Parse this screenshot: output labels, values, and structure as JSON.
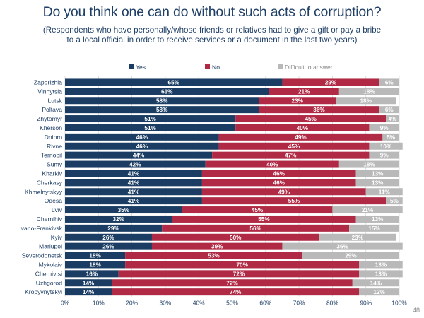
{
  "title": "Do you think one can do without such acts of corruption?",
  "subtitle_line1": "(Respondents who have personally/whose friends or relatives had to give a gift or pay a bribe",
  "subtitle_line2": "to a local official in order to receive services or a document in the last two years)",
  "page_number": "48",
  "colors": {
    "yes": "#1b3d63",
    "no": "#b02a45",
    "difficult": "#b9b9b9"
  },
  "chart_data": {
    "type": "bar",
    "orientation": "horizontal",
    "stacked": true,
    "xlim": [
      0,
      100
    ],
    "xticks": [
      "0%",
      "10%",
      "20%",
      "30%",
      "40%",
      "50%",
      "60%",
      "70%",
      "80%",
      "90%",
      "100%"
    ],
    "legend_position": "top",
    "categories": [
      "Zaporizhia",
      "Vinnytsia",
      "Lutsk",
      "Poltava",
      "Zhytomyr",
      "Kherson",
      "Dnipro",
      "Rivne",
      "Ternopil",
      "Sumy",
      "Kharkiv",
      "Cherkasy",
      "Khmelnytskyy",
      "Odesa",
      "Lviv",
      "Chernihiv",
      "Ivano-Frankivsk",
      "Kyiv",
      "Mariupol",
      "Severodonetsk",
      "Mykolaiv",
      "Chernivtsi",
      "Uzhgorod",
      "Kropyvnytskyi"
    ],
    "series": [
      {
        "name": "Yes",
        "values": [
          65,
          61,
          58,
          58,
          51,
          51,
          46,
          46,
          44,
          42,
          41,
          41,
          41,
          41,
          35,
          32,
          29,
          26,
          26,
          18,
          18,
          16,
          14,
          14
        ]
      },
      {
        "name": "No",
        "values": [
          29,
          21,
          23,
          36,
          45,
          40,
          49,
          45,
          47,
          40,
          46,
          46,
          49,
          55,
          45,
          55,
          56,
          50,
          39,
          53,
          70,
          72,
          72,
          74
        ]
      },
      {
        "name": "Difficult to answer",
        "values": [
          6,
          18,
          18,
          6,
          4,
          9,
          5,
          10,
          9,
          18,
          13,
          13,
          11,
          5,
          21,
          13,
          15,
          23,
          36,
          29,
          13,
          13,
          14,
          12
        ]
      }
    ]
  }
}
